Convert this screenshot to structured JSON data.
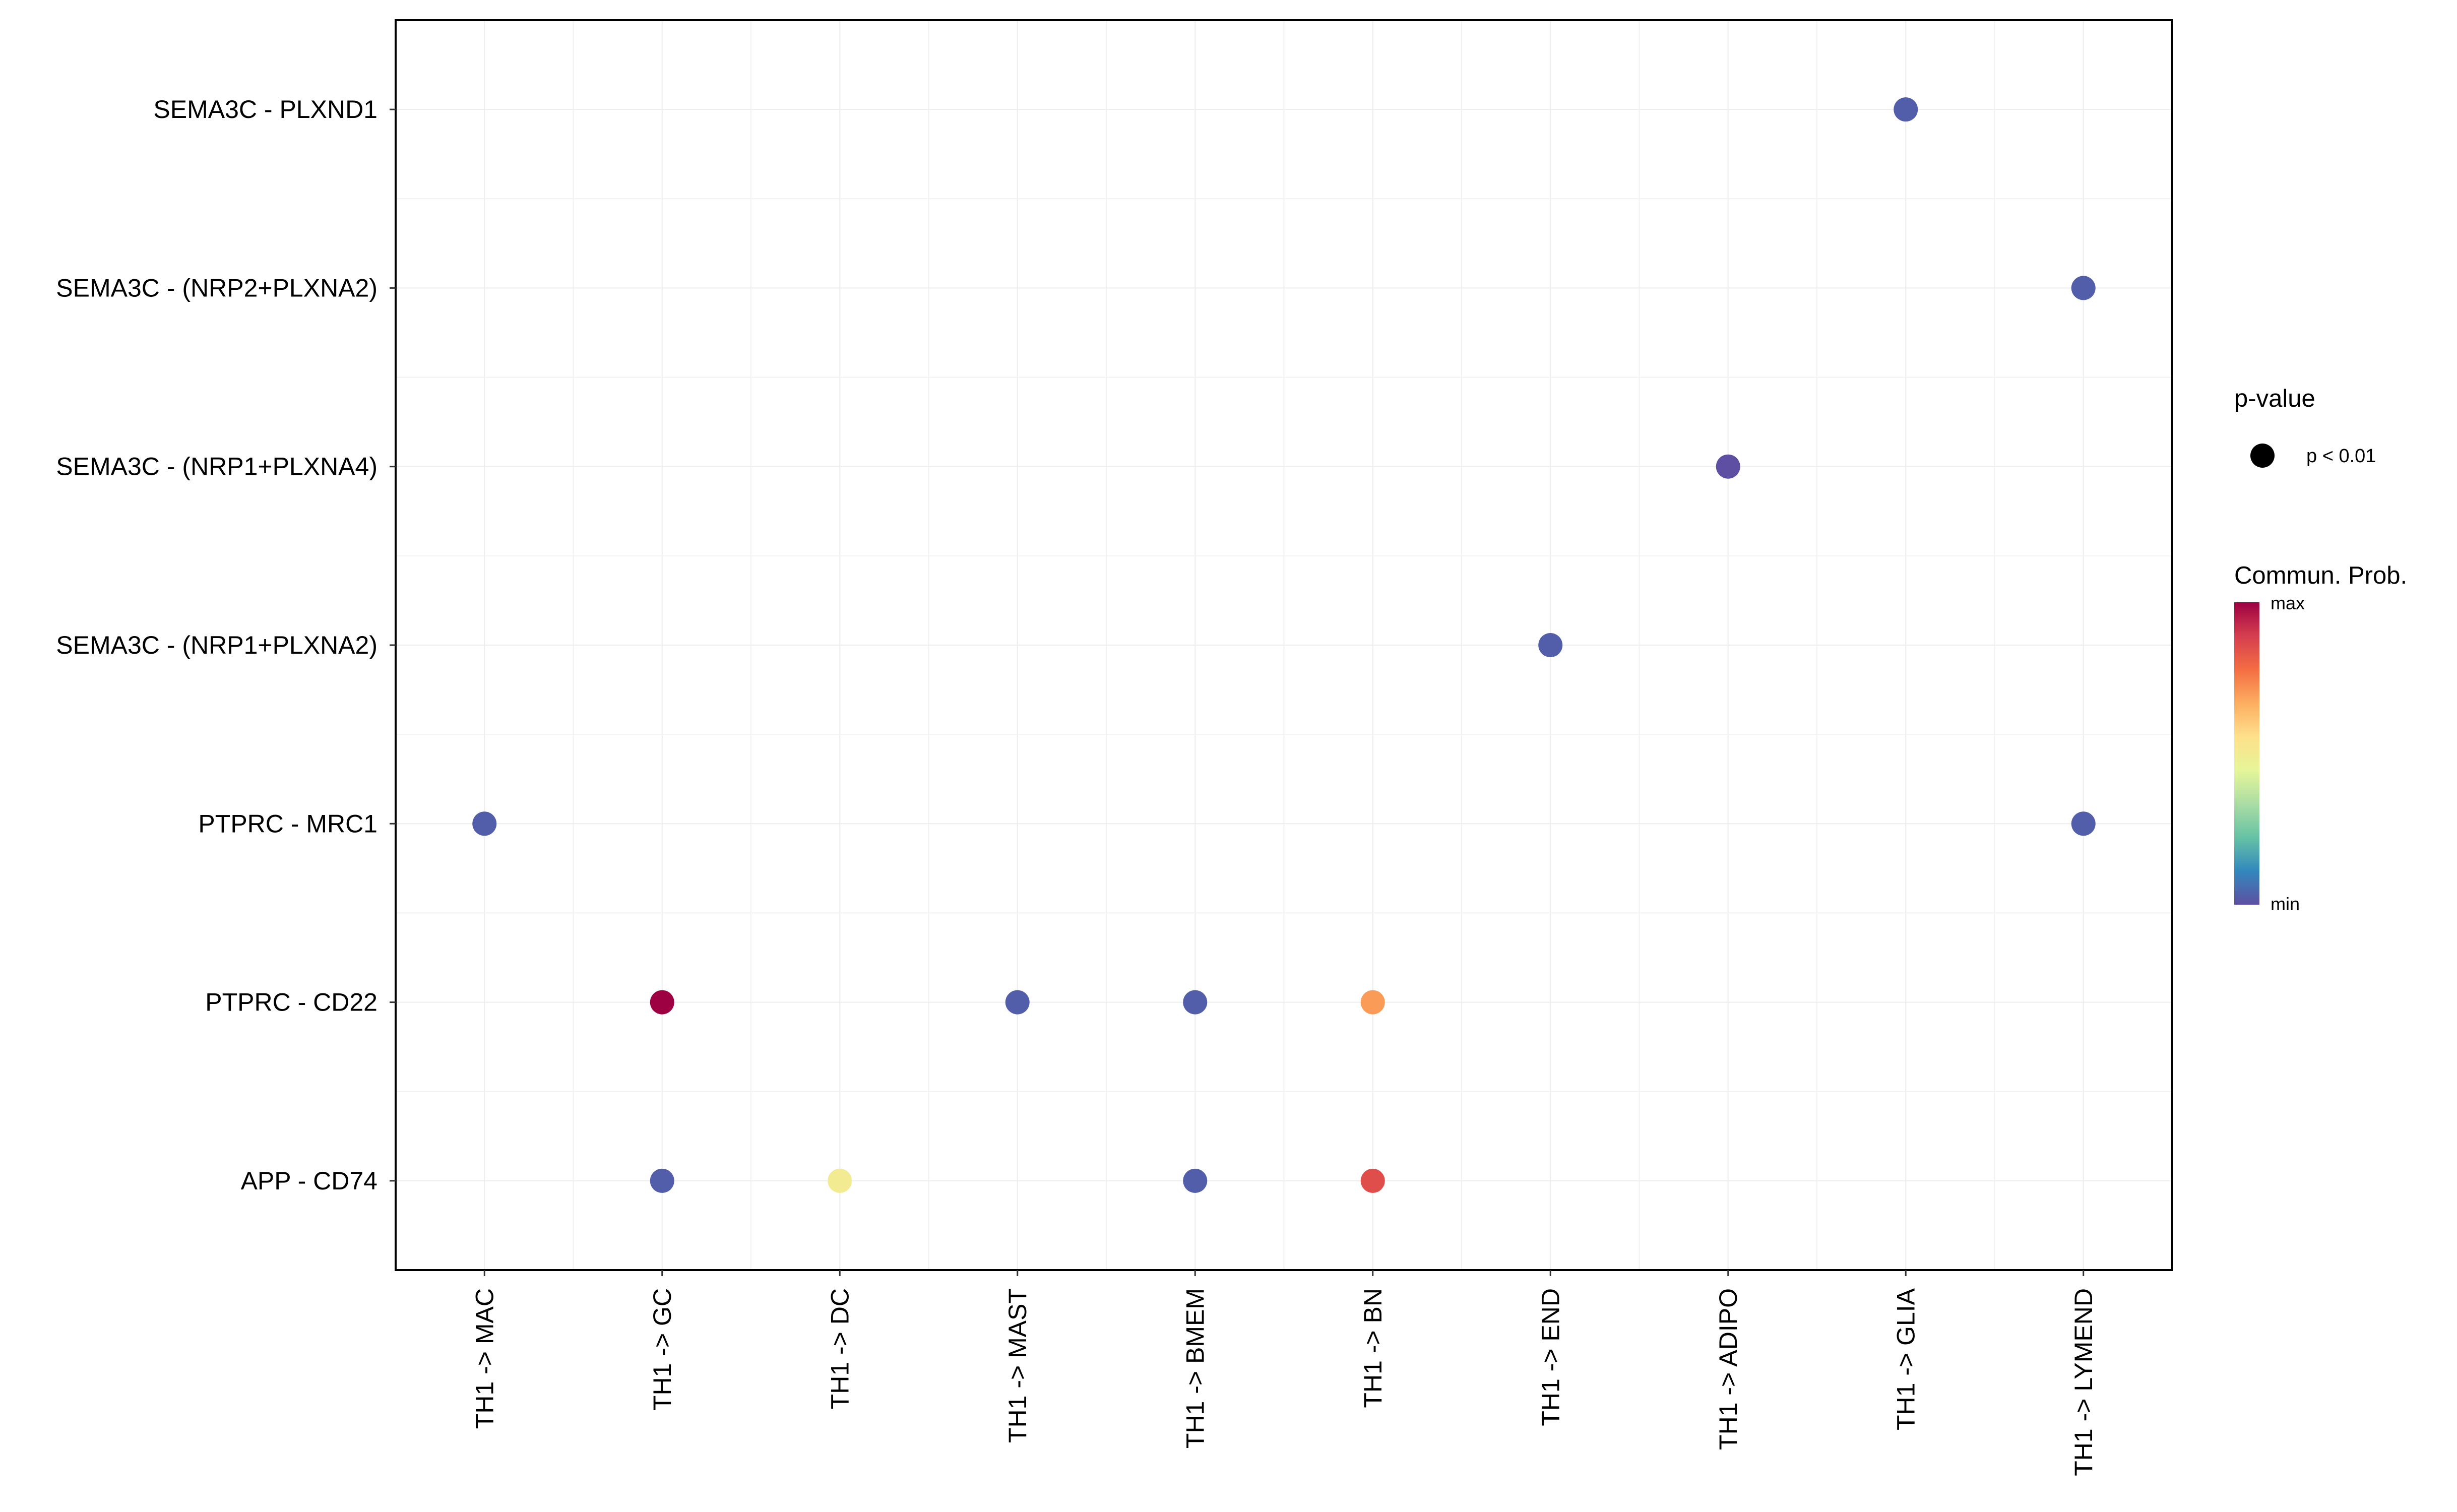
{
  "chart_data": {
    "type": "scatter",
    "title": "",
    "xlabel": "",
    "ylabel": "",
    "x_categories": [
      "TH1 -> MAC",
      "TH1 -> GC",
      "TH1 -> DC",
      "TH1 -> MAST",
      "TH1 -> BMEM",
      "TH1 -> BN",
      "TH1 -> END",
      "TH1 -> ADIPO",
      "TH1 -> GLIA",
      "TH1 -> LYMEND"
    ],
    "y_categories": [
      "SEMA3C - PLXND1",
      "SEMA3C - (NRP2+PLXNA2)",
      "SEMA3C - (NRP1+PLXNA4)",
      "SEMA3C - (NRP1+PLXNA2)",
      "PTPRC - MRC1",
      "PTPRC - CD22",
      "APP - CD74"
    ],
    "grid": true,
    "points": [
      {
        "x": "TH1 -> GLIA",
        "y": "SEMA3C - PLXND1",
        "prob": 0.03
      },
      {
        "x": "TH1 -> LYMEND",
        "y": "SEMA3C - (NRP2+PLXNA2)",
        "prob": 0.03
      },
      {
        "x": "TH1 -> ADIPO",
        "y": "SEMA3C - (NRP1+PLXNA4)",
        "prob": 0.0
      },
      {
        "x": "TH1 -> END",
        "y": "SEMA3C - (NRP1+PLXNA2)",
        "prob": 0.03
      },
      {
        "x": "TH1 -> MAC",
        "y": "PTPRC - MRC1",
        "prob": 0.03
      },
      {
        "x": "TH1 -> LYMEND",
        "y": "PTPRC - MRC1",
        "prob": 0.03
      },
      {
        "x": "TH1 -> GC",
        "y": "PTPRC - CD22",
        "prob": 1.0
      },
      {
        "x": "TH1 -> MAST",
        "y": "PTPRC - CD22",
        "prob": 0.03
      },
      {
        "x": "TH1 -> BMEM",
        "y": "PTPRC - CD22",
        "prob": 0.03
      },
      {
        "x": "TH1 -> BN",
        "y": "PTPRC - CD22",
        "prob": 0.7
      },
      {
        "x": "TH1 -> GC",
        "y": "APP - CD74",
        "prob": 0.03
      },
      {
        "x": "TH1 -> DC",
        "y": "APP - CD74",
        "prob": 0.5
      },
      {
        "x": "TH1 -> BMEM",
        "y": "APP - CD74",
        "prob": 0.03
      },
      {
        "x": "TH1 -> BN",
        "y": "APP - CD74",
        "prob": 0.85
      }
    ],
    "legend": {
      "pvalue_title": "p-value",
      "pvalue_label": "p < 0.01",
      "colorbar_title": "Commun. Prob.",
      "colorbar_max_label": "max",
      "colorbar_min_label": "min",
      "colorbar_stops": [
        "#9E0142",
        "#D53E4F",
        "#F46D43",
        "#FDAE61",
        "#FEE08B",
        "#E6F598",
        "#ABDDA4",
        "#66C2A5",
        "#3288BD",
        "#5E4FA2"
      ]
    }
  }
}
